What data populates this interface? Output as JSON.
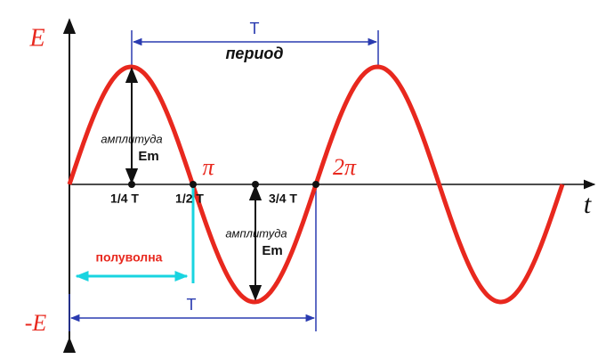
{
  "axis": {
    "y_top": "E",
    "y_bottom": "-E",
    "x": "t"
  },
  "period_top": {
    "symbol": "T",
    "caption": "период"
  },
  "amplitude_1": {
    "caption": "амплитуда",
    "symbol": "Em"
  },
  "amplitude_2": {
    "caption": "амплитуда",
    "symbol": "Em"
  },
  "marks": {
    "quarter": "1/4 T",
    "half": "1/2 T",
    "three_quarter": "3/4 T",
    "pi": "π",
    "two_pi": "2π"
  },
  "half_wave": "полуволна",
  "period_bottom": {
    "symbol": "T"
  }
}
